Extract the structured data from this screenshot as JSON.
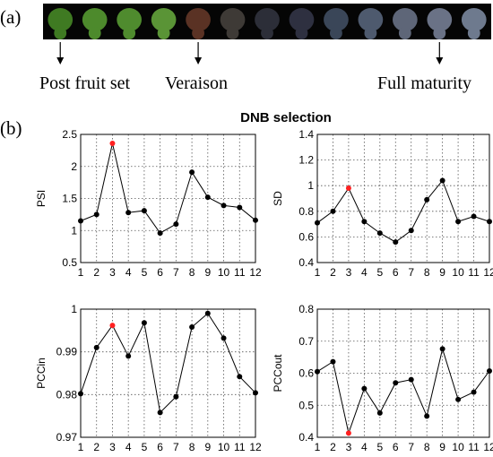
{
  "figure": {
    "panel_a_label": "(a)",
    "panel_b_label": "(b)",
    "title": "DNB selection"
  },
  "strip": {
    "swatch_colors": [
      "#3f7a22",
      "#4d8a2c",
      "#4f8b2e",
      "#5a9436",
      "#5a3224",
      "#3e3a36",
      "#2c2e38",
      "#2e3040",
      "#3a4658",
      "#4e5a6e",
      "#5e6678",
      "#6a7286",
      "#6e7a8e"
    ]
  },
  "stages": [
    {
      "label": "Post fruit set",
      "point": 1
    },
    {
      "label": "Veraison",
      "point": 5
    },
    {
      "label": "Full maturity",
      "point": 12
    }
  ],
  "chart_data": [
    {
      "type": "line",
      "ylabel": "PSI",
      "x": [
        1,
        2,
        3,
        4,
        5,
        6,
        7,
        8,
        9,
        10,
        11,
        12
      ],
      "ylim": [
        0.5,
        2.5
      ],
      "yticks": [
        "0.5",
        "1",
        "1.5",
        "2",
        "2.5"
      ],
      "values": [
        1.15,
        1.25,
        2.36,
        1.28,
        1.31,
        0.96,
        1.1,
        1.91,
        1.52,
        1.39,
        1.36,
        1.16
      ],
      "highlight_index": 2,
      "grid": true
    },
    {
      "type": "line",
      "ylabel": "SD",
      "x": [
        1,
        2,
        3,
        4,
        5,
        6,
        7,
        8,
        9,
        10,
        11,
        12
      ],
      "ylim": [
        0.4,
        1.4
      ],
      "yticks": [
        "0.4",
        "0.6",
        "0.8",
        "1",
        "1.2",
        "1.4"
      ],
      "values": [
        0.71,
        0.8,
        0.98,
        0.72,
        0.63,
        0.56,
        0.65,
        0.89,
        1.04,
        0.72,
        0.76,
        0.72
      ],
      "highlight_index": 2,
      "grid": true
    },
    {
      "type": "line",
      "ylabel": "PCCin",
      "x": [
        1,
        2,
        3,
        4,
        5,
        6,
        7,
        8,
        9,
        10,
        11,
        12
      ],
      "ylim": [
        0.97,
        1.0
      ],
      "yticks": [
        "0.97",
        "0.98",
        "0.99",
        "1"
      ],
      "values": [
        0.9802,
        0.991,
        0.9962,
        0.989,
        0.9968,
        0.9758,
        0.9795,
        0.9958,
        0.999,
        0.9932,
        0.9842,
        0.9804
      ],
      "highlight_index": 2,
      "grid": true
    },
    {
      "type": "line",
      "ylabel": "PCCout",
      "x": [
        1,
        2,
        3,
        4,
        5,
        6,
        7,
        8,
        9,
        10,
        11,
        12
      ],
      "ylim": [
        0.4,
        0.8
      ],
      "yticks": [
        "0.4",
        "0.5",
        "0.6",
        "0.7",
        "0.8"
      ],
      "values": [
        0.605,
        0.636,
        0.413,
        0.552,
        0.476,
        0.57,
        0.58,
        0.466,
        0.676,
        0.518,
        0.541,
        0.607
      ],
      "highlight_index": 2,
      "grid": true
    }
  ],
  "colors": {
    "point": "#000000",
    "highlight": "#ff2020",
    "strip_bg": "#050505"
  }
}
